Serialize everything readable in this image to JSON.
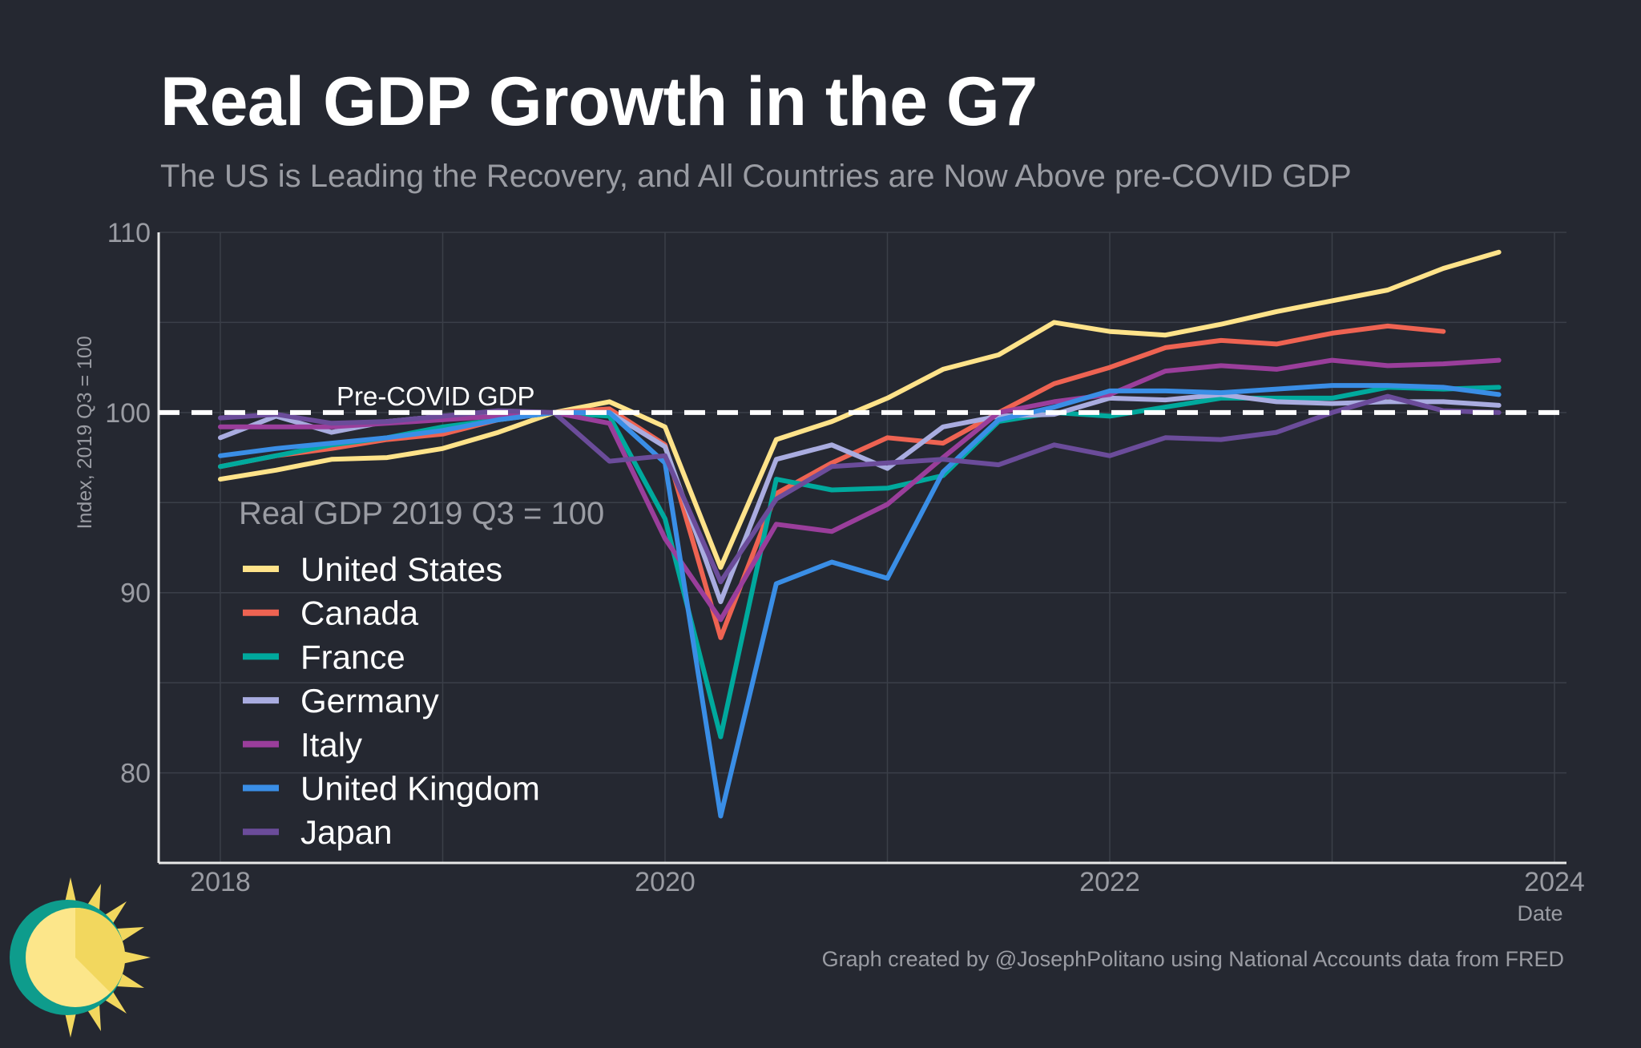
{
  "title": "Real GDP Growth in the G7",
  "subtitle": "The US is Leading the Recovery, and All Countries are Now Above pre-COVID GDP",
  "caption": "Graph created by @JosephPolitano using National Accounts data from FRED",
  "chart_data": {
    "type": "line",
    "ylabel": "Index, 2019 Q3 = 100",
    "xlabel": "Date",
    "x_ticks": [
      "2018",
      "2020",
      "2022",
      "2024"
    ],
    "y_ticks": [
      "80",
      "90",
      "100",
      "110"
    ],
    "ylim": [
      75,
      110
    ],
    "xlim": [
      "2017-09",
      "2024-02"
    ],
    "grid": true,
    "legend_title": "Real GDP 2019 Q3 = 100",
    "legend_position": "center-left",
    "reference_line": {
      "label": "Pre-COVID GDP",
      "value": 100,
      "style": "dashed"
    },
    "x": [
      "2018-01",
      "2018-04",
      "2018-07",
      "2018-10",
      "2019-01",
      "2019-04",
      "2019-07",
      "2019-10",
      "2020-01",
      "2020-04",
      "2020-07",
      "2020-10",
      "2021-01",
      "2021-04",
      "2021-07",
      "2021-10",
      "2022-01",
      "2022-04",
      "2022-07",
      "2022-10",
      "2023-01",
      "2023-04",
      "2023-07",
      "2023-10"
    ],
    "series": [
      {
        "name": "United States",
        "color": "#FFE38A",
        "values": [
          96.3,
          96.8,
          97.4,
          97.5,
          98.0,
          98.9,
          100.0,
          100.6,
          99.2,
          91.4,
          98.5,
          99.5,
          100.8,
          102.4,
          103.2,
          105.0,
          104.5,
          104.3,
          104.9,
          105.6,
          106.2,
          106.8,
          108.0,
          108.9
        ]
      },
      {
        "name": "Canada",
        "color": "#EE6352",
        "values": [
          97.0,
          97.6,
          98.0,
          98.5,
          98.8,
          99.6,
          100.0,
          100.2,
          98.2,
          87.5,
          95.5,
          97.2,
          98.6,
          98.3,
          100.0,
          101.6,
          102.5,
          103.6,
          104.0,
          103.8,
          104.4,
          104.8,
          104.5,
          null
        ]
      },
      {
        "name": "France",
        "color": "#00A99D",
        "values": [
          97.0,
          97.6,
          98.2,
          98.6,
          99.2,
          99.6,
          100.0,
          99.8,
          94.1,
          82.0,
          96.3,
          95.7,
          95.8,
          96.5,
          99.5,
          100.0,
          99.8,
          100.3,
          100.8,
          100.8,
          100.8,
          101.4,
          101.3,
          101.4
        ]
      },
      {
        "name": "Germany",
        "color": "#A9ACE0",
        "values": [
          98.6,
          99.8,
          98.9,
          99.5,
          99.8,
          99.9,
          100.0,
          100.0,
          98.1,
          89.5,
          97.4,
          98.2,
          96.9,
          99.2,
          99.8,
          99.9,
          100.8,
          100.7,
          101.0,
          100.6,
          100.5,
          100.6,
          100.6,
          100.4
        ]
      },
      {
        "name": "Italy",
        "color": "#9A3E9B",
        "values": [
          99.2,
          99.2,
          99.2,
          99.4,
          99.6,
          99.8,
          100.0,
          99.4,
          93.0,
          88.5,
          93.8,
          93.4,
          94.9,
          97.5,
          100.0,
          100.6,
          101.0,
          102.3,
          102.6,
          102.4,
          102.9,
          102.6,
          102.7,
          102.9
        ]
      },
      {
        "name": "United Kingdom",
        "color": "#3A8EE6",
        "values": [
          97.6,
          98.0,
          98.3,
          98.6,
          99.0,
          99.6,
          100.0,
          100.0,
          97.2,
          77.6,
          90.5,
          91.7,
          90.8,
          96.7,
          99.6,
          100.3,
          101.2,
          101.2,
          101.1,
          101.3,
          101.5,
          101.5,
          101.4,
          101.0
        ]
      },
      {
        "name": "Japan",
        "color": "#6B4C9A",
        "values": [
          99.7,
          99.9,
          99.4,
          99.5,
          99.8,
          100.1,
          100.0,
          97.3,
          97.6,
          90.6,
          95.2,
          97.0,
          97.2,
          97.4,
          97.1,
          98.2,
          97.6,
          98.6,
          98.5,
          98.9,
          100.0,
          100.9,
          100.1,
          100.0
        ]
      }
    ]
  }
}
